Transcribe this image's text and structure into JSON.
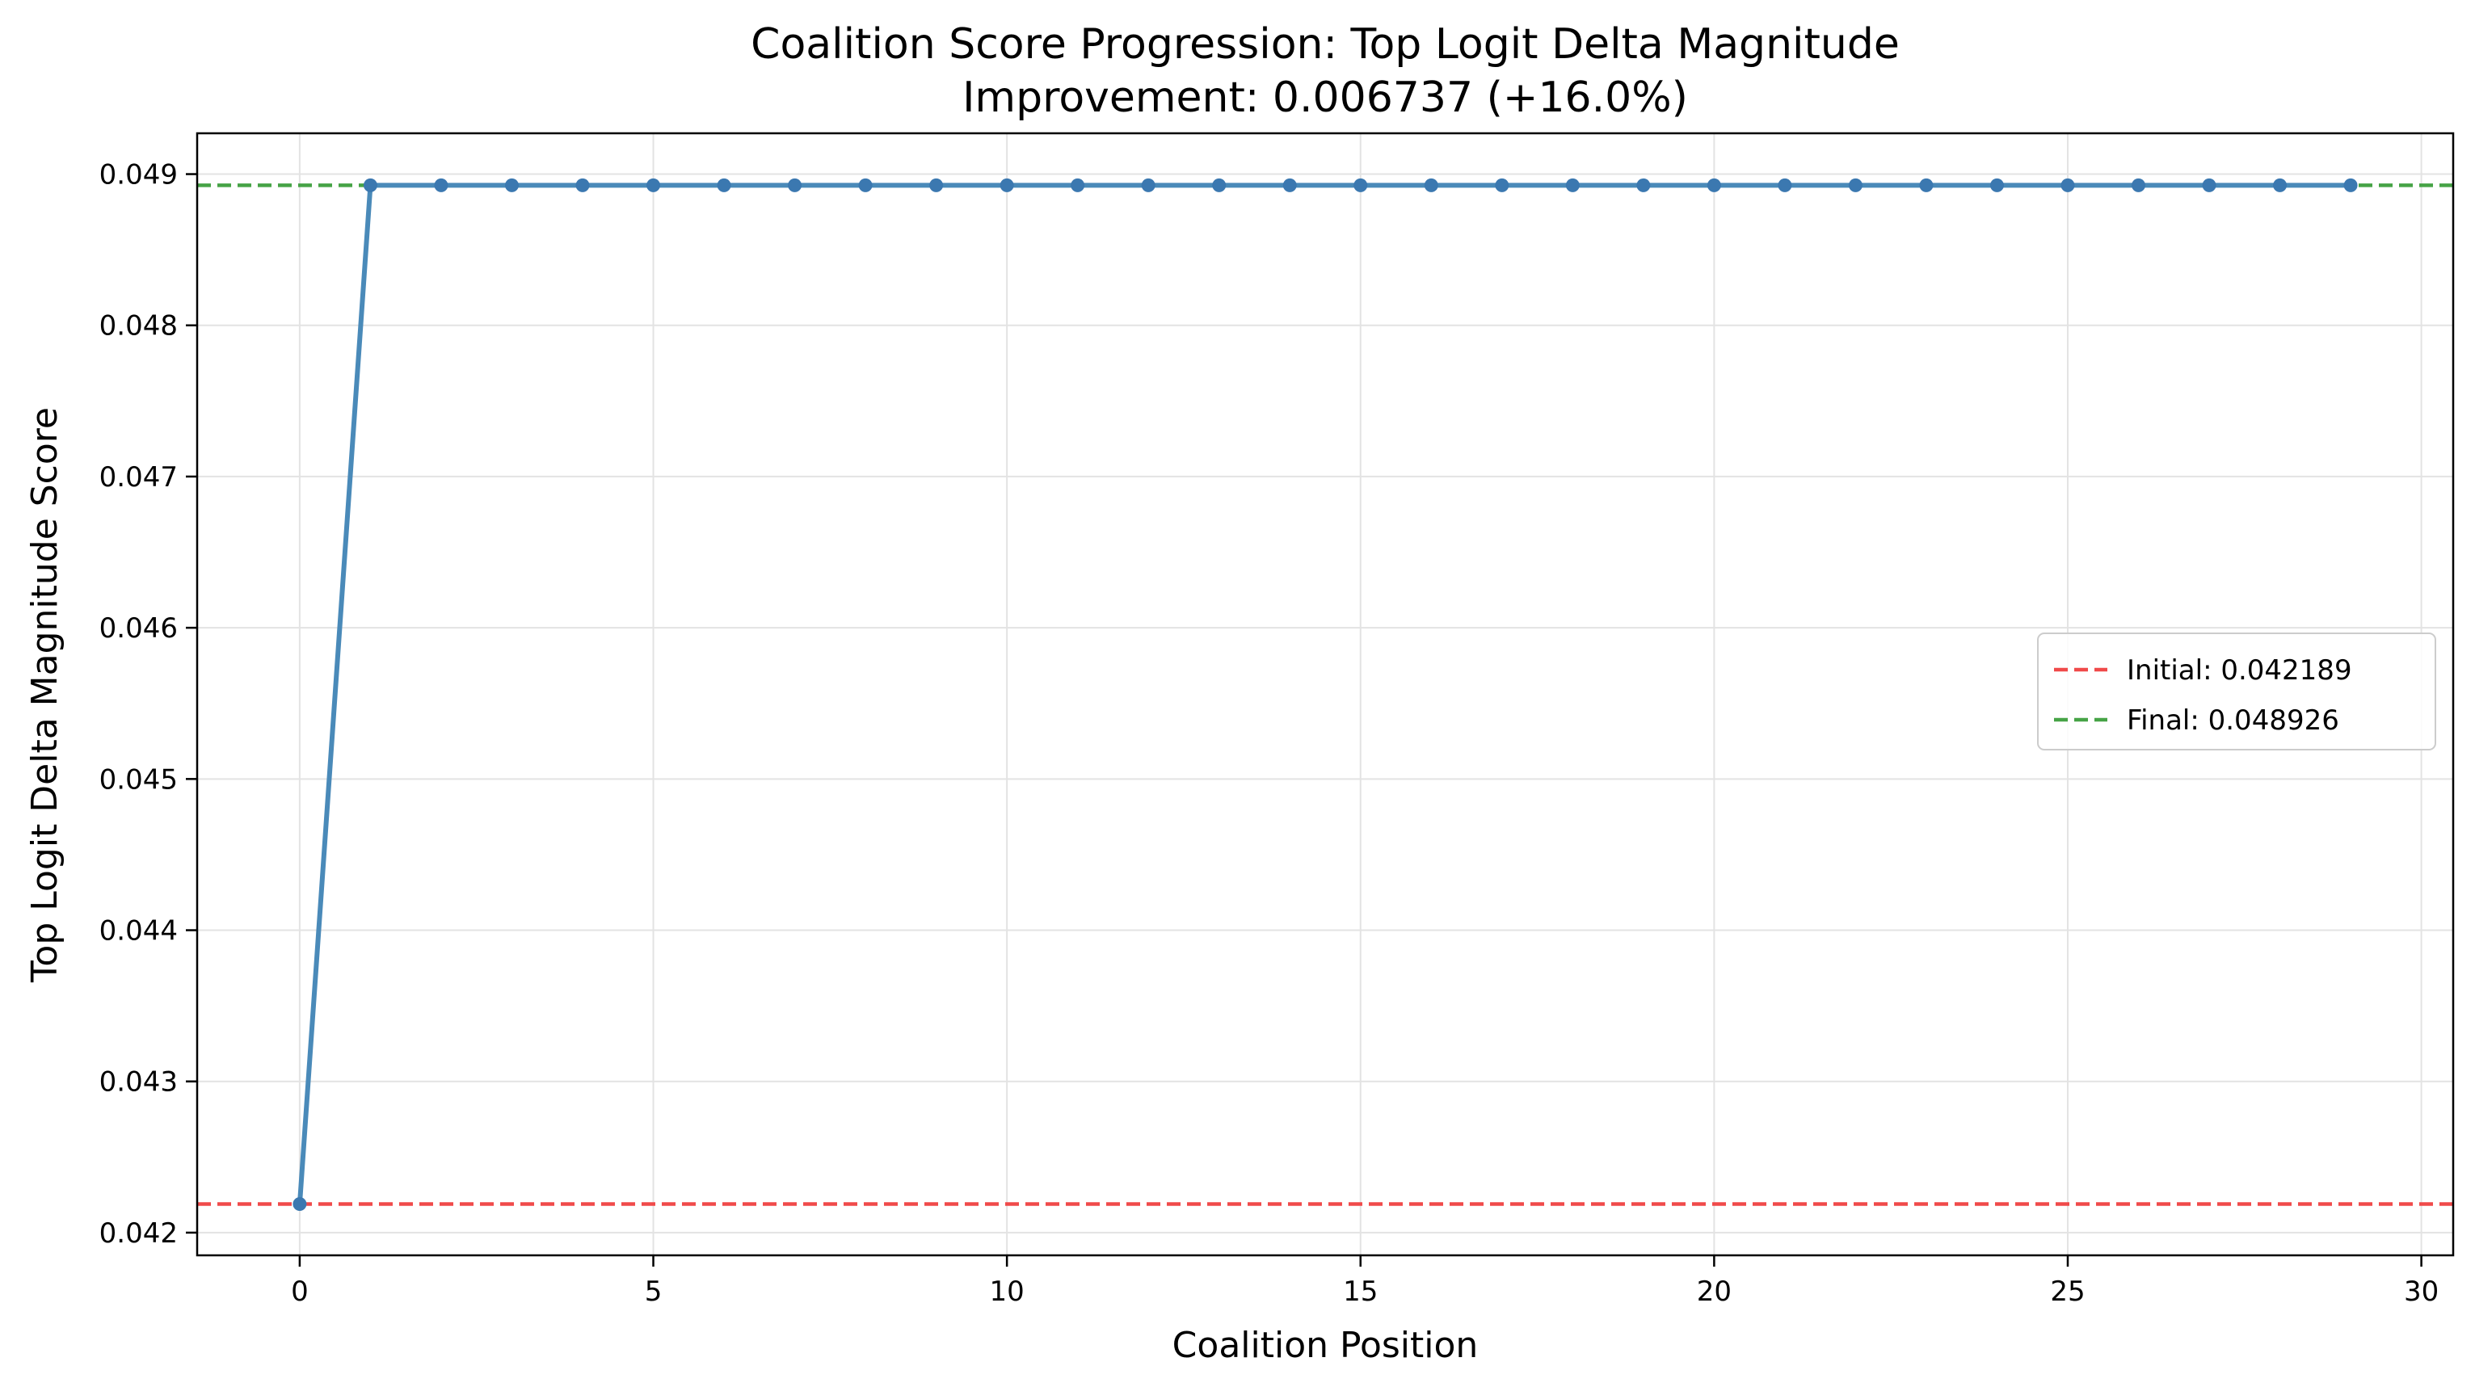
{
  "chart_data": {
    "type": "line",
    "title": "Coalition Score Progression: Top Logit Delta Magnitude",
    "subtitle": "Improvement: 0.006737 (+16.0%)",
    "xlabel": "Coalition Position",
    "ylabel": "Top Logit Delta Magnitude Score",
    "xlim": [
      -1.45,
      30.45
    ],
    "ylim": [
      0.04185,
      0.04927
    ],
    "xticks": [
      0,
      5,
      10,
      15,
      20,
      25,
      30
    ],
    "xtick_labels": [
      "0",
      "5",
      "10",
      "15",
      "20",
      "25",
      "30"
    ],
    "yticks": [
      0.042,
      0.043,
      0.044,
      0.045,
      0.046,
      0.047,
      0.048,
      0.049
    ],
    "ytick_labels": [
      "0.042",
      "0.043",
      "0.044",
      "0.045",
      "0.046",
      "0.047",
      "0.048",
      "0.049"
    ],
    "grid": true,
    "legend_position": "center-right",
    "series": [
      {
        "color": "#4a8ab9",
        "marker_color": "#3b78b0",
        "x": [
          0,
          1,
          2,
          3,
          4,
          5,
          6,
          7,
          8,
          9,
          10,
          11,
          12,
          13,
          14,
          15,
          16,
          17,
          18,
          19,
          20,
          21,
          22,
          23,
          24,
          25,
          26,
          27,
          28,
          29
        ],
        "y": [
          0.042189,
          0.048926,
          0.048926,
          0.048926,
          0.048926,
          0.048926,
          0.048926,
          0.048926,
          0.048926,
          0.048926,
          0.048926,
          0.048926,
          0.048926,
          0.048926,
          0.048926,
          0.048926,
          0.048926,
          0.048926,
          0.048926,
          0.048926,
          0.048926,
          0.048926,
          0.048926,
          0.048926,
          0.048926,
          0.048926,
          0.048926,
          0.048926,
          0.048926,
          0.048926
        ]
      }
    ],
    "reference_lines": [
      {
        "name": "Initial: 0.042189",
        "value": 0.042189,
        "color": "#f04a4a",
        "style": "dashed"
      },
      {
        "name": "Final: 0.048926",
        "value": 0.048926,
        "color": "#46a346",
        "style": "dashed"
      }
    ]
  }
}
